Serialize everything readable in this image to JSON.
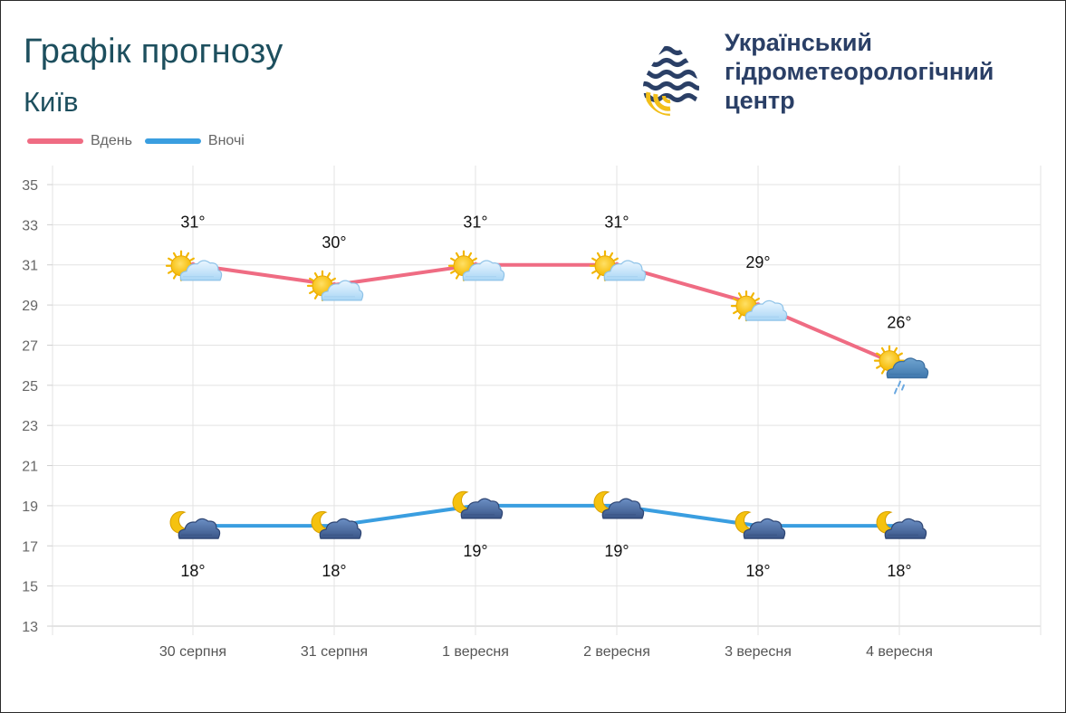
{
  "header": {
    "title": "Графік прогнозу",
    "city": "Київ",
    "org_lines": [
      "Український",
      "гідрометеорологічний",
      "центр"
    ]
  },
  "legend": [
    {
      "label": "Вдень",
      "color": "#ef6c83"
    },
    {
      "label": "Вночі",
      "color": "#3a9ee0"
    }
  ],
  "chart_data": {
    "type": "line",
    "categories": [
      "30 серпня",
      "31 серпня",
      "1 вересня",
      "2 вересня",
      "3 вересня",
      "4 вересня"
    ],
    "ylim": [
      13,
      35
    ],
    "yticks": [
      35,
      33,
      31,
      29,
      27,
      25,
      23,
      21,
      19,
      17,
      15,
      13
    ],
    "grid": true,
    "legend_position": "top-left",
    "series": [
      {
        "name": "Вдень",
        "color": "#ef6c83",
        "values": [
          31,
          30,
          31,
          31,
          29,
          26
        ],
        "labels": [
          "31°",
          "30°",
          "31°",
          "31°",
          "29°",
          "26°"
        ],
        "icons": [
          "sun-cloud-icon",
          "sun-cloud-icon",
          "sun-cloud-icon",
          "sun-cloud-icon",
          "sun-cloud-icon",
          "sun-rain-cloud-icon"
        ]
      },
      {
        "name": "Вночі",
        "color": "#3a9ee0",
        "values": [
          18,
          18,
          19,
          19,
          18,
          18
        ],
        "labels": [
          "18°",
          "18°",
          "19°",
          "19°",
          "18°",
          "18°"
        ],
        "icons": [
          "moon-cloud-icon",
          "moon-cloud-icon",
          "moon-cloud-icon",
          "moon-cloud-icon",
          "moon-cloud-icon",
          "moon-cloud-icon"
        ]
      }
    ]
  }
}
